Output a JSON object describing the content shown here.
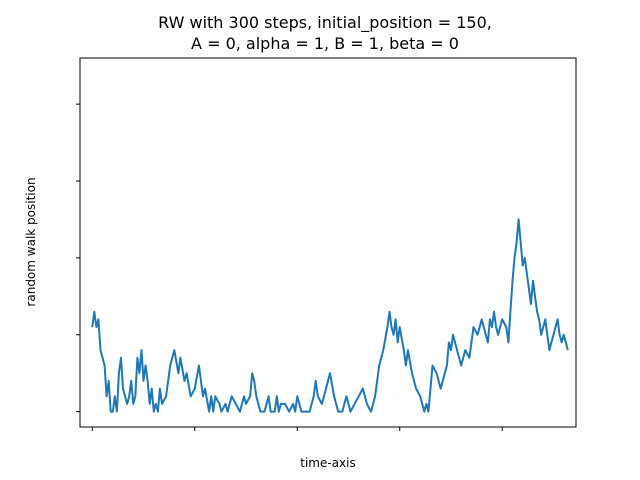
{
  "chart_data": {
    "type": "line",
    "title_line1": "RW with 300 steps, initial_position = 150,",
    "title_line2": "A = 0, alpha = 1, B = 1, beta = 0",
    "xlabel": "time-axis",
    "ylabel": "random walk position",
    "xlim": [
      -6,
      236
    ],
    "ylim": [
      148,
      196
    ],
    "x_ticks": [
      0,
      50,
      100,
      150,
      200
    ],
    "y_ticks": [
      150,
      160,
      170,
      180,
      190
    ],
    "grid": false,
    "series": [
      {
        "color": "#1f77b4",
        "points": [
          [
            0,
            161
          ],
          [
            1,
            163
          ],
          [
            2,
            161
          ],
          [
            3,
            162
          ],
          [
            4,
            158
          ],
          [
            6,
            156
          ],
          [
            7,
            152
          ],
          [
            8,
            154
          ],
          [
            9,
            150
          ],
          [
            10,
            150
          ],
          [
            11,
            152
          ],
          [
            12,
            150
          ],
          [
            13,
            155
          ],
          [
            14,
            157
          ],
          [
            15,
            153
          ],
          [
            17,
            151
          ],
          [
            18,
            152
          ],
          [
            19,
            154
          ],
          [
            20,
            151
          ],
          [
            21,
            152
          ],
          [
            22,
            157
          ],
          [
            23,
            155
          ],
          [
            24,
            158
          ],
          [
            25,
            154
          ],
          [
            26,
            156
          ],
          [
            27,
            154
          ],
          [
            28,
            151
          ],
          [
            29,
            153
          ],
          [
            30,
            150
          ],
          [
            31,
            151
          ],
          [
            32,
            150
          ],
          [
            33,
            153
          ],
          [
            34,
            151
          ],
          [
            36,
            152
          ],
          [
            38,
            156
          ],
          [
            40,
            158
          ],
          [
            42,
            155
          ],
          [
            43,
            157
          ],
          [
            45,
            154
          ],
          [
            46,
            155
          ],
          [
            48,
            152
          ],
          [
            50,
            153
          ],
          [
            52,
            156
          ],
          [
            54,
            152
          ],
          [
            55,
            153
          ],
          [
            57,
            150
          ],
          [
            58,
            152
          ],
          [
            59,
            150
          ],
          [
            60,
            152
          ],
          [
            62,
            151
          ],
          [
            63,
            150
          ],
          [
            65,
            151
          ],
          [
            66,
            150
          ],
          [
            68,
            152
          ],
          [
            70,
            151
          ],
          [
            72,
            150
          ],
          [
            74,
            152
          ],
          [
            75,
            151
          ],
          [
            77,
            152
          ],
          [
            78,
            155
          ],
          [
            79,
            154
          ],
          [
            80,
            152
          ],
          [
            81,
            151
          ],
          [
            82,
            150
          ],
          [
            84,
            150
          ],
          [
            86,
            152
          ],
          [
            87,
            150
          ],
          [
            88,
            150
          ],
          [
            89,
            150
          ],
          [
            90,
            152
          ],
          [
            91,
            150
          ],
          [
            92,
            151
          ],
          [
            94,
            151
          ],
          [
            96,
            150
          ],
          [
            98,
            151
          ],
          [
            99,
            150
          ],
          [
            100,
            152
          ],
          [
            102,
            150
          ],
          [
            104,
            150
          ],
          [
            106,
            150
          ],
          [
            108,
            152
          ],
          [
            109,
            154
          ],
          [
            110,
            152
          ],
          [
            112,
            151
          ],
          [
            114,
            153
          ],
          [
            116,
            155
          ],
          [
            118,
            152
          ],
          [
            120,
            150
          ],
          [
            122,
            150
          ],
          [
            124,
            152
          ],
          [
            126,
            150
          ],
          [
            128,
            151
          ],
          [
            130,
            152
          ],
          [
            132,
            153
          ],
          [
            134,
            151
          ],
          [
            136,
            150
          ],
          [
            138,
            152
          ],
          [
            140,
            156
          ],
          [
            142,
            158
          ],
          [
            144,
            161
          ],
          [
            145,
            163
          ],
          [
            146,
            161
          ],
          [
            147,
            160
          ],
          [
            148,
            162
          ],
          [
            149,
            159
          ],
          [
            150,
            161
          ],
          [
            152,
            158
          ],
          [
            153,
            156
          ],
          [
            154,
            158
          ],
          [
            156,
            155
          ],
          [
            158,
            153
          ],
          [
            160,
            152
          ],
          [
            162,
            150
          ],
          [
            163,
            151
          ],
          [
            164,
            150
          ],
          [
            165,
            153
          ],
          [
            166,
            156
          ],
          [
            168,
            155
          ],
          [
            170,
            153
          ],
          [
            172,
            155
          ],
          [
            173,
            156
          ],
          [
            174,
            159
          ],
          [
            175,
            158
          ],
          [
            176,
            160
          ],
          [
            178,
            158
          ],
          [
            180,
            156
          ],
          [
            182,
            158
          ],
          [
            184,
            157
          ],
          [
            186,
            161
          ],
          [
            188,
            160
          ],
          [
            190,
            162
          ],
          [
            192,
            160
          ],
          [
            193,
            159
          ],
          [
            194,
            162
          ],
          [
            195,
            161
          ],
          [
            196,
            163
          ],
          [
            197,
            161
          ],
          [
            198,
            160
          ],
          [
            200,
            162
          ],
          [
            202,
            161
          ],
          [
            203,
            159
          ],
          [
            204,
            163
          ],
          [
            205,
            167
          ],
          [
            206,
            170
          ],
          [
            207,
            172
          ],
          [
            208,
            175
          ],
          [
            209,
            172
          ],
          [
            210,
            169
          ],
          [
            211,
            170
          ],
          [
            212,
            168
          ],
          [
            213,
            166
          ],
          [
            214,
            164
          ],
          [
            215,
            167
          ],
          [
            216,
            165
          ],
          [
            217,
            163
          ],
          [
            218,
            162
          ],
          [
            219,
            160
          ],
          [
            220,
            161
          ],
          [
            221,
            162
          ],
          [
            222,
            160
          ],
          [
            223,
            158
          ],
          [
            224,
            159
          ],
          [
            225,
            160
          ],
          [
            226,
            161
          ],
          [
            227,
            162
          ],
          [
            228,
            160
          ],
          [
            229,
            159
          ],
          [
            230,
            160
          ],
          [
            231,
            159
          ],
          [
            232,
            158
          ]
        ]
      }
    ]
  }
}
